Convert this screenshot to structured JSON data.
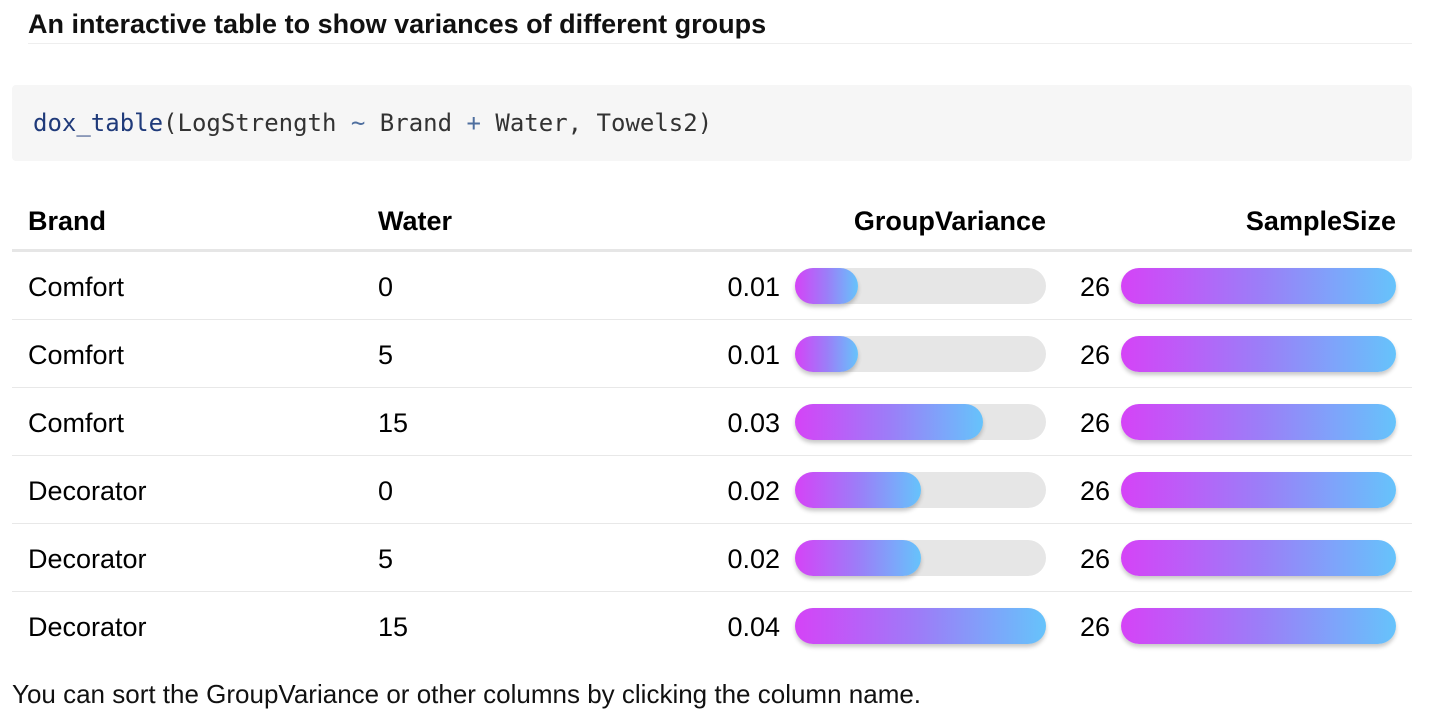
{
  "heading": "An interactive table to show variances of different groups",
  "code": {
    "fn": "dox_table",
    "open": "(",
    "arg1": "LogStrength ",
    "tilde": "~",
    "arg2": " Brand ",
    "plus": "+",
    "arg3": " Water, Towels2)"
  },
  "table": {
    "columns": [
      "Brand",
      "Water",
      "GroupVariance",
      "SampleSize"
    ],
    "rows": [
      {
        "brand": "Comfort",
        "water": "0",
        "variance": "0.01",
        "variance_fraction": 0.25,
        "size": "26",
        "size_fraction": 1.0
      },
      {
        "brand": "Comfort",
        "water": "5",
        "variance": "0.01",
        "variance_fraction": 0.25,
        "size": "26",
        "size_fraction": 1.0
      },
      {
        "brand": "Comfort",
        "water": "15",
        "variance": "0.03",
        "variance_fraction": 0.75,
        "size": "26",
        "size_fraction": 1.0
      },
      {
        "brand": "Decorator",
        "water": "0",
        "variance": "0.02",
        "variance_fraction": 0.5,
        "size": "26",
        "size_fraction": 1.0
      },
      {
        "brand": "Decorator",
        "water": "5",
        "variance": "0.02",
        "variance_fraction": 0.5,
        "size": "26",
        "size_fraction": 1.0
      },
      {
        "brand": "Decorator",
        "water": "15",
        "variance": "0.04",
        "variance_fraction": 1.0,
        "size": "26",
        "size_fraction": 1.0
      }
    ]
  },
  "colors": {
    "bar_start": "#d543f7",
    "bar_mid": "#9c7df8",
    "bar_end": "#66c3fb",
    "track": "#e6e6e6",
    "code_bg": "#f6f6f6"
  },
  "footnote": "You can sort the GroupVariance or other columns by clicking the column name."
}
